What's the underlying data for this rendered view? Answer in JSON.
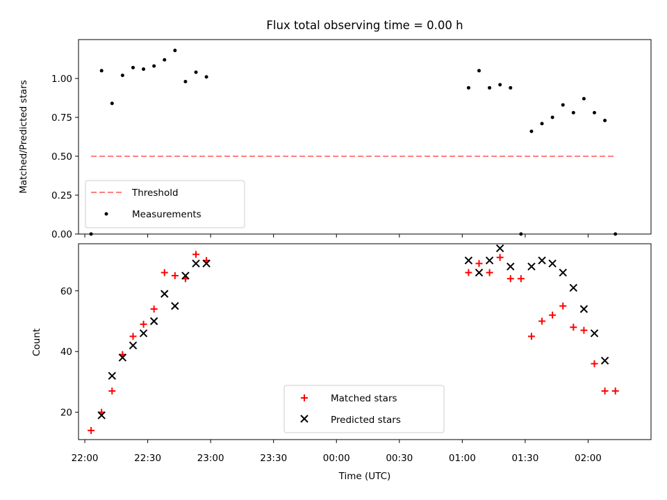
{
  "chart_data": [
    {
      "type": "scatter",
      "title": "Flux total observing time = 0.00 h",
      "xlabel": "",
      "ylabel": "Matched/Predicted stars",
      "xlim": [
        "21:57",
        "02:30"
      ],
      "ylim": [
        0,
        1.25
      ],
      "yticks": [
        "0.00",
        "0.25",
        "0.50",
        "0.75",
        "1.00"
      ],
      "ytick_values": [
        0,
        0.25,
        0.5,
        0.75,
        1.0
      ],
      "legend": {
        "placement": "lower left",
        "entries": [
          "Threshold",
          "Measurements"
        ]
      },
      "threshold": {
        "name": "Threshold",
        "value": 0.5,
        "x": [
          "22:03",
          "02:13"
        ],
        "color": "#ff7f7f",
        "style": "dashed"
      },
      "series": [
        {
          "name": "Measurements",
          "color": "#000000",
          "marker": "dot",
          "points": [
            [
              "22:03",
              0.0
            ],
            [
              "22:08",
              1.05
            ],
            [
              "22:13",
              0.84
            ],
            [
              "22:18",
              1.02
            ],
            [
              "22:23",
              1.07
            ],
            [
              "22:28",
              1.06
            ],
            [
              "22:33",
              1.08
            ],
            [
              "22:38",
              1.12
            ],
            [
              "22:43",
              1.18
            ],
            [
              "22:48",
              0.98
            ],
            [
              "22:53",
              1.04
            ],
            [
              "22:58",
              1.01
            ],
            [
              "01:03",
              0.94
            ],
            [
              "01:08",
              1.05
            ],
            [
              "01:13",
              0.94
            ],
            [
              "01:18",
              0.96
            ],
            [
              "01:23",
              0.94
            ],
            [
              "01:28",
              0.0
            ],
            [
              "01:33",
              0.66
            ],
            [
              "01:38",
              0.71
            ],
            [
              "01:43",
              0.75
            ],
            [
              "01:48",
              0.83
            ],
            [
              "01:53",
              0.78
            ],
            [
              "01:58",
              0.87
            ],
            [
              "02:03",
              0.78
            ],
            [
              "02:08",
              0.73
            ],
            [
              "02:13",
              0.0
            ]
          ]
        }
      ]
    },
    {
      "type": "scatter",
      "title": "",
      "xlabel": "Time (UTC)",
      "ylabel": "Count",
      "xlim": [
        "21:57",
        "02:30"
      ],
      "ylim": [
        11,
        75.5
      ],
      "xticks": [
        "22:00",
        "22:30",
        "23:00",
        "23:30",
        "00:00",
        "00:30",
        "01:00",
        "01:30",
        "02:00"
      ],
      "yticks": [
        "20",
        "40",
        "60"
      ],
      "ytick_values": [
        20,
        40,
        60
      ],
      "legend": {
        "placement": "lower center",
        "entries": [
          "Matched stars",
          "Predicted stars"
        ]
      },
      "series": [
        {
          "name": "Matched stars",
          "color": "#ff0000",
          "marker": "plus",
          "points": [
            [
              "22:03",
              14
            ],
            [
              "22:08",
              20
            ],
            [
              "22:13",
              27
            ],
            [
              "22:18",
              39
            ],
            [
              "22:23",
              45
            ],
            [
              "22:28",
              49
            ],
            [
              "22:33",
              54
            ],
            [
              "22:38",
              66
            ],
            [
              "22:43",
              65
            ],
            [
              "22:48",
              64
            ],
            [
              "22:53",
              72
            ],
            [
              "22:58",
              70
            ],
            [
              "01:03",
              66
            ],
            [
              "01:08",
              69
            ],
            [
              "01:13",
              66
            ],
            [
              "01:18",
              71
            ],
            [
              "01:23",
              64
            ],
            [
              "01:28",
              64
            ],
            [
              "01:33",
              45
            ],
            [
              "01:38",
              50
            ],
            [
              "01:43",
              52
            ],
            [
              "01:48",
              55
            ],
            [
              "01:53",
              48
            ],
            [
              "01:58",
              47
            ],
            [
              "02:03",
              36
            ],
            [
              "02:08",
              27
            ],
            [
              "02:13",
              27
            ]
          ]
        },
        {
          "name": "Predicted stars",
          "color": "#000000",
          "marker": "x",
          "points": [
            [
              "22:08",
              19
            ],
            [
              "22:13",
              32
            ],
            [
              "22:18",
              38
            ],
            [
              "22:23",
              42
            ],
            [
              "22:28",
              46
            ],
            [
              "22:33",
              50
            ],
            [
              "22:38",
              59
            ],
            [
              "22:43",
              55
            ],
            [
              "22:48",
              65
            ],
            [
              "22:53",
              69
            ],
            [
              "22:58",
              69
            ],
            [
              "01:03",
              70
            ],
            [
              "01:08",
              66
            ],
            [
              "01:13",
              70
            ],
            [
              "01:18",
              74
            ],
            [
              "01:23",
              68
            ],
            [
              "01:33",
              68
            ],
            [
              "01:38",
              70
            ],
            [
              "01:43",
              69
            ],
            [
              "01:48",
              66
            ],
            [
              "01:53",
              61
            ],
            [
              "01:58",
              54
            ],
            [
              "02:03",
              46
            ],
            [
              "02:08",
              37
            ]
          ]
        }
      ]
    }
  ]
}
